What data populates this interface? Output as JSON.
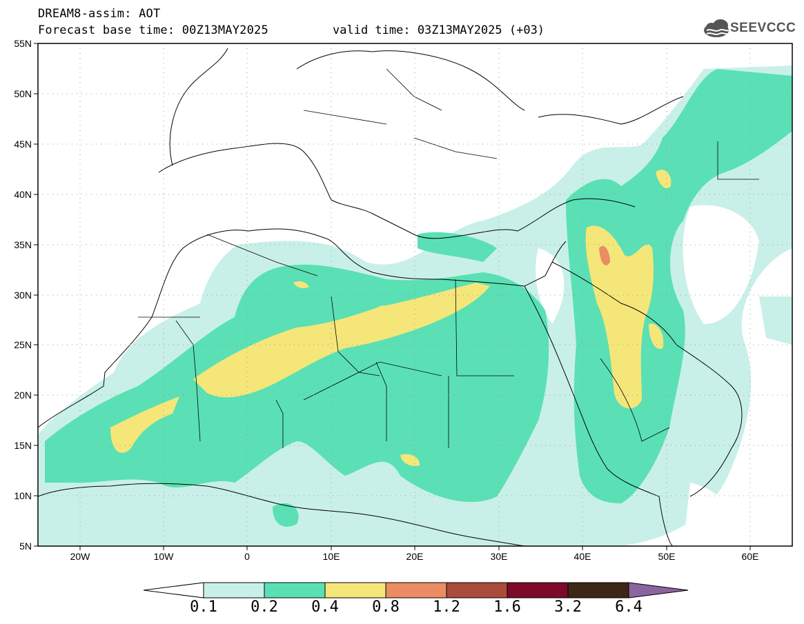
{
  "header": {
    "title": "DREAM8-assim: AOT",
    "base_time": "Forecast base time: 00Z13MAY2025",
    "valid_time": "valid time: 03Z13MAY2025 (+03)",
    "logo_text": "SEEVCCC"
  },
  "map": {
    "lon_range": [
      -25,
      65
    ],
    "lat_range": [
      5,
      55
    ],
    "x_ticks": [
      "20W",
      "10W",
      "0",
      "10E",
      "20E",
      "30E",
      "40E",
      "50E",
      "60E"
    ],
    "y_ticks": [
      "55N",
      "50N",
      "45N",
      "40N",
      "35N",
      "30N",
      "25N",
      "20N",
      "15N",
      "10N",
      "5N"
    ],
    "grid": "dotted"
  },
  "colorbar": {
    "labels": [
      "0.1",
      "0.2",
      "0.4",
      "0.8",
      "1.2",
      "1.6",
      "3.2",
      "6.4"
    ],
    "colors": [
      "#c8f0e8",
      "#5ae0b4",
      "#f5e67a",
      "#eb8c64",
      "#aa4b3c",
      "#7d0a28",
      "#3c2814",
      "#8c64a0"
    ],
    "under_color": "#ffffff"
  }
}
